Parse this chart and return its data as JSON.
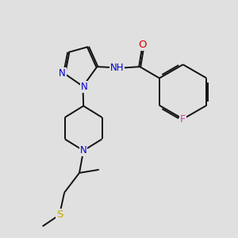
{
  "background_color": "#e0e0e0",
  "atom_colors": {
    "C": "#000000",
    "N": "#0000cc",
    "O": "#dd0000",
    "F": "#cc44aa",
    "S": "#bbaa00",
    "H": "#555555"
  },
  "bond_color": "#111111",
  "bond_width": 1.4,
  "font_size_atom": 8.5,
  "figsize": [
    3.0,
    3.0
  ],
  "dpi": 100
}
